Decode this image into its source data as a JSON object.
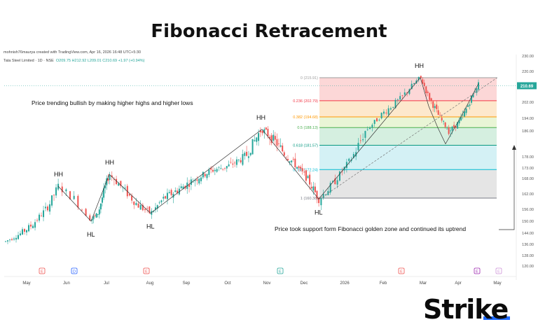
{
  "title": "Fibonacci Retracement",
  "chart_info": {
    "credit": "mohnish76maurya created with TradingView.com, Apr 16, 2026 16:48 UTC+5:30",
    "symbol": "Tata Steel Limited · 1D · NSE",
    "ohlc": "O209.75 H212.92 L209.01 C210.69 +1.97 (+0.94%)"
  },
  "logo": "Strike",
  "chart_data": {
    "type": "candlestick",
    "x_labels": [
      "May",
      "Jun",
      "Jul",
      "Aug",
      "Sep",
      "Oct",
      "Nov",
      "Dec",
      "2026",
      "Feb",
      "Mar",
      "Apr",
      "May"
    ],
    "y_ticks": [
      120,
      128,
      136,
      144,
      150,
      156,
      162,
      168,
      173,
      178,
      186,
      194,
      202,
      210,
      220,
      230
    ],
    "ylim": [
      120,
      232
    ],
    "last_price": "210.69",
    "fib_levels": [
      {
        "ratio": 0,
        "price": 215.91,
        "label": "0 (215.91)",
        "color": "#9e9e9e"
      },
      {
        "ratio": 0.236,
        "price": 202.79,
        "label": "0.236 (202.79)",
        "color": "#f23645"
      },
      {
        "ratio": 0.382,
        "price": 194.68,
        "label": "0.382 (194.68)",
        "color": "#ff9800"
      },
      {
        "ratio": 0.5,
        "price": 188.13,
        "label": "0.5 (188.13)",
        "color": "#4caf50"
      },
      {
        "ratio": 0.618,
        "price": 181.57,
        "label": "0.618 (181.57)",
        "color": "#089981"
      },
      {
        "ratio": 0.786,
        "price": 172.24,
        "label": "0.786 (172.24)",
        "color": "#00bcd4"
      },
      {
        "ratio": 1,
        "price": 160.38,
        "label": "1 (160.38)",
        "color": "#787b86"
      }
    ],
    "fib_fills": [
      "#fcd7d7",
      "#fde8cc",
      "#e9f5d6",
      "#d5efe0",
      "#d4f1f5",
      "#e5e5e5"
    ],
    "swing_points": [
      {
        "x": 6,
        "y": 165,
        "label": "HH"
      },
      {
        "x": 8,
        "y": 150,
        "label": "HL"
      },
      {
        "x": 11,
        "y": 170,
        "label": "HH"
      },
      {
        "x": 15.5,
        "y": 154,
        "label": "HL"
      },
      {
        "x": 29,
        "y": 187,
        "label": "HH"
      },
      {
        "x": 36.5,
        "y": 160,
        "label": "HL"
      },
      {
        "x": 47,
        "y": 216,
        "label": "HH"
      }
    ],
    "annotations": {
      "trend_text": "Price trending bullish by making higher highs and higher lows",
      "support_text": "Price took support form Fibonacci golden zone and continued its uptrend"
    },
    "event_markers": [
      "E",
      "D",
      "E",
      "E",
      "E",
      "E",
      "E"
    ]
  }
}
